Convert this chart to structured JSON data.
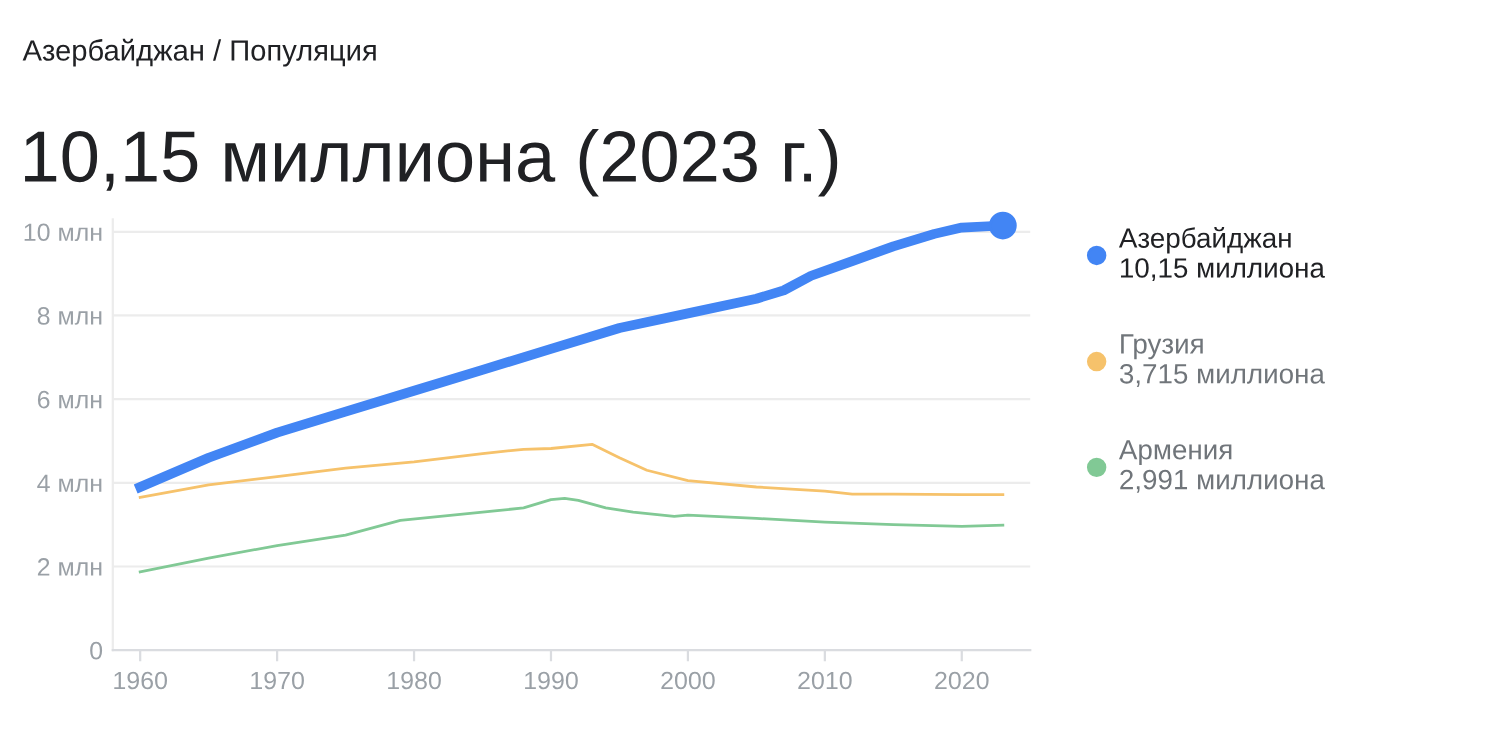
{
  "chart_data": {
    "type": "line",
    "subtitle": "Азербайджан / Популяция",
    "title": "10,15 миллиона (2023 г.)",
    "series": [
      {
        "name": "Азербайджан",
        "color": "#4285f4",
        "x": [
          1960,
          1965,
          1970,
          1975,
          1980,
          1985,
          1990,
          1995,
          2000,
          2005,
          2007,
          2009,
          2012,
          2015,
          2018,
          2020,
          2023
        ],
        "values": [
          3.9,
          4.6,
          5.2,
          5.7,
          6.2,
          6.7,
          7.2,
          7.7,
          8.05,
          8.4,
          8.6,
          8.95,
          9.3,
          9.65,
          9.95,
          10.1,
          10.15
        ]
      },
      {
        "name": "Грузия",
        "color": "#f6c26b",
        "x": [
          1960,
          1965,
          1970,
          1975,
          1980,
          1985,
          1988,
          1990,
          1993,
          1995,
          1997,
          2000,
          2005,
          2010,
          2012,
          2015,
          2020,
          2023
        ],
        "values": [
          3.65,
          3.95,
          4.15,
          4.35,
          4.5,
          4.7,
          4.8,
          4.82,
          4.92,
          4.6,
          4.3,
          4.05,
          3.9,
          3.8,
          3.73,
          3.73,
          3.72,
          3.72
        ]
      },
      {
        "name": "Армения",
        "color": "#81c995",
        "x": [
          1960,
          1965,
          1970,
          1975,
          1979,
          1985,
          1988,
          1990,
          1991,
          1992,
          1994,
          1996,
          1999,
          2000,
          2005,
          2010,
          2015,
          2020,
          2023
        ],
        "values": [
          1.87,
          2.2,
          2.5,
          2.75,
          3.1,
          3.3,
          3.4,
          3.6,
          3.63,
          3.58,
          3.4,
          3.3,
          3.2,
          3.23,
          3.15,
          3.06,
          3.0,
          2.96,
          2.99
        ]
      }
    ],
    "annotations": [
      "10,15 миллиона",
      "3,715 миллиона",
      "2,991 миллиона"
    ],
    "xlim": [
      1958,
      2025
    ],
    "xticks": [
      1960,
      1970,
      1980,
      1990,
      2000,
      2010,
      2020
    ],
    "ylim": [
      0,
      10.3
    ],
    "yticks": [
      {
        "value": 0,
        "label": "0"
      },
      {
        "value": 2,
        "label": "2 млн"
      },
      {
        "value": 4,
        "label": "4 млн"
      },
      {
        "value": 6,
        "label": "6 млн"
      },
      {
        "value": 8,
        "label": "8 млн"
      },
      {
        "value": 10,
        "label": "10 млн"
      }
    ],
    "grid": "y",
    "legend": "right"
  }
}
